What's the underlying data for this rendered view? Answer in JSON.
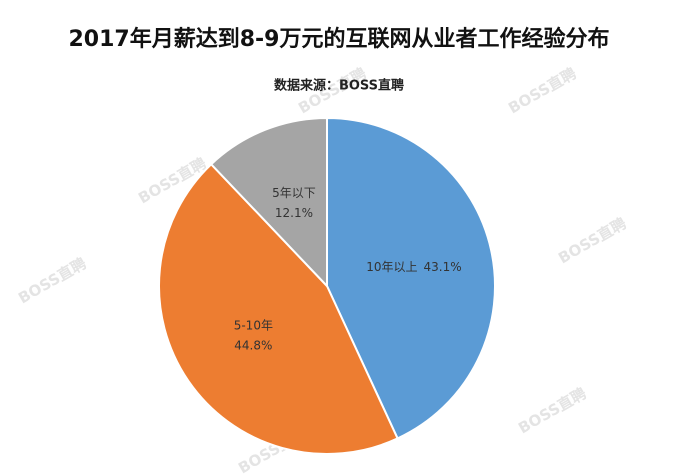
{
  "chart_data": {
    "type": "pie",
    "title": "2017年月薪达到8-9万元的互联网从业者工作经验分布",
    "subtitle": "数据来源：BOSS直聘",
    "watermark": "BOSS直聘",
    "categories": [
      "10年以上",
      "5-10年",
      "5年以下"
    ],
    "values": [
      43.1,
      44.8,
      12.1
    ],
    "value_labels": [
      "43.1%",
      "44.8%",
      "12.1%"
    ],
    "colors": [
      "#5b9bd5",
      "#ed7d31",
      "#a5a5a5"
    ]
  }
}
